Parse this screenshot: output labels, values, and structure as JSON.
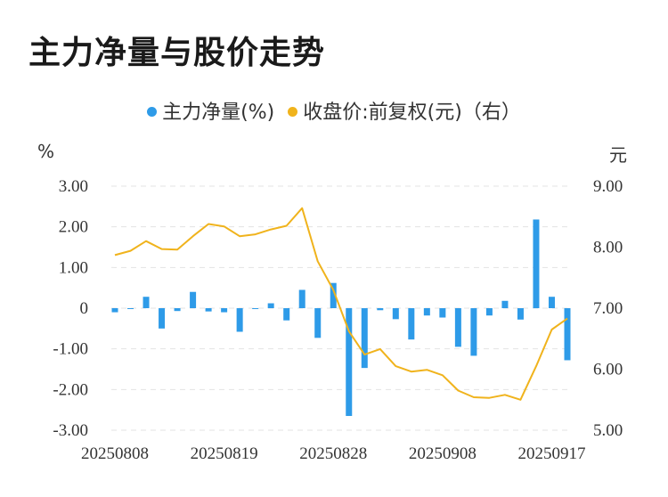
{
  "title": "主力净量与股价走势",
  "legend": {
    "series1": "主力净量(%)",
    "series2": "收盘价:前复权(元)（右）"
  },
  "units": {
    "left": "%",
    "right": "元"
  },
  "colors": {
    "bar": "#2e9be8",
    "line": "#f0b31c",
    "grid": "#e3e3e3",
    "text": "#333333"
  },
  "chart_data": {
    "type": "bar+line",
    "x": [
      "20250808",
      "20250811",
      "20250812",
      "20250813",
      "20250814",
      "20250815",
      "20250818",
      "20250819",
      "20250820",
      "20250821",
      "20250822",
      "20250825",
      "20250826",
      "20250827",
      "20250828",
      "20250829",
      "20250901",
      "20250902",
      "20250903",
      "20250904",
      "20250905",
      "20250908",
      "20250909",
      "20250910",
      "20250911",
      "20250912",
      "20250915",
      "20250916",
      "20250917",
      "20250918"
    ],
    "x_tick_labels": [
      "20250808",
      "20250819",
      "20250828",
      "20250908",
      "20250917"
    ],
    "y_left": {
      "ticks": [
        "3.00",
        "2.00",
        "1.00",
        "0",
        "-1.00",
        "-2.00",
        "-3.00"
      ],
      "range": [
        -3,
        3
      ]
    },
    "y_right": {
      "ticks": [
        "9.00",
        "8.00",
        "7.00",
        "6.00",
        "5.00"
      ],
      "range": [
        5,
        9
      ]
    },
    "grid": true,
    "legend_position": "top",
    "series": [
      {
        "name": "主力净量(%)",
        "type": "bar",
        "axis": "left",
        "values": [
          -0.1,
          -0.02,
          0.28,
          -0.5,
          -0.07,
          0.4,
          -0.08,
          -0.1,
          -0.58,
          -0.02,
          0.12,
          -0.3,
          0.45,
          -0.73,
          0.62,
          -2.65,
          -1.47,
          -0.05,
          -0.27,
          -0.77,
          -0.18,
          -0.23,
          -0.95,
          -1.17,
          -0.18,
          0.18,
          -0.28,
          2.18,
          0.28,
          -1.28
        ]
      },
      {
        "name": "收盘价:前复权(元)（右）",
        "type": "line",
        "axis": "right",
        "values": [
          7.87,
          7.94,
          8.1,
          7.97,
          7.96,
          8.18,
          8.38,
          8.34,
          8.18,
          8.21,
          8.29,
          8.35,
          8.64,
          7.77,
          7.3,
          6.62,
          6.24,
          6.33,
          6.05,
          5.96,
          5.99,
          5.9,
          5.65,
          5.54,
          5.53,
          5.58,
          5.5,
          6.05,
          6.65,
          6.83
        ]
      }
    ]
  }
}
